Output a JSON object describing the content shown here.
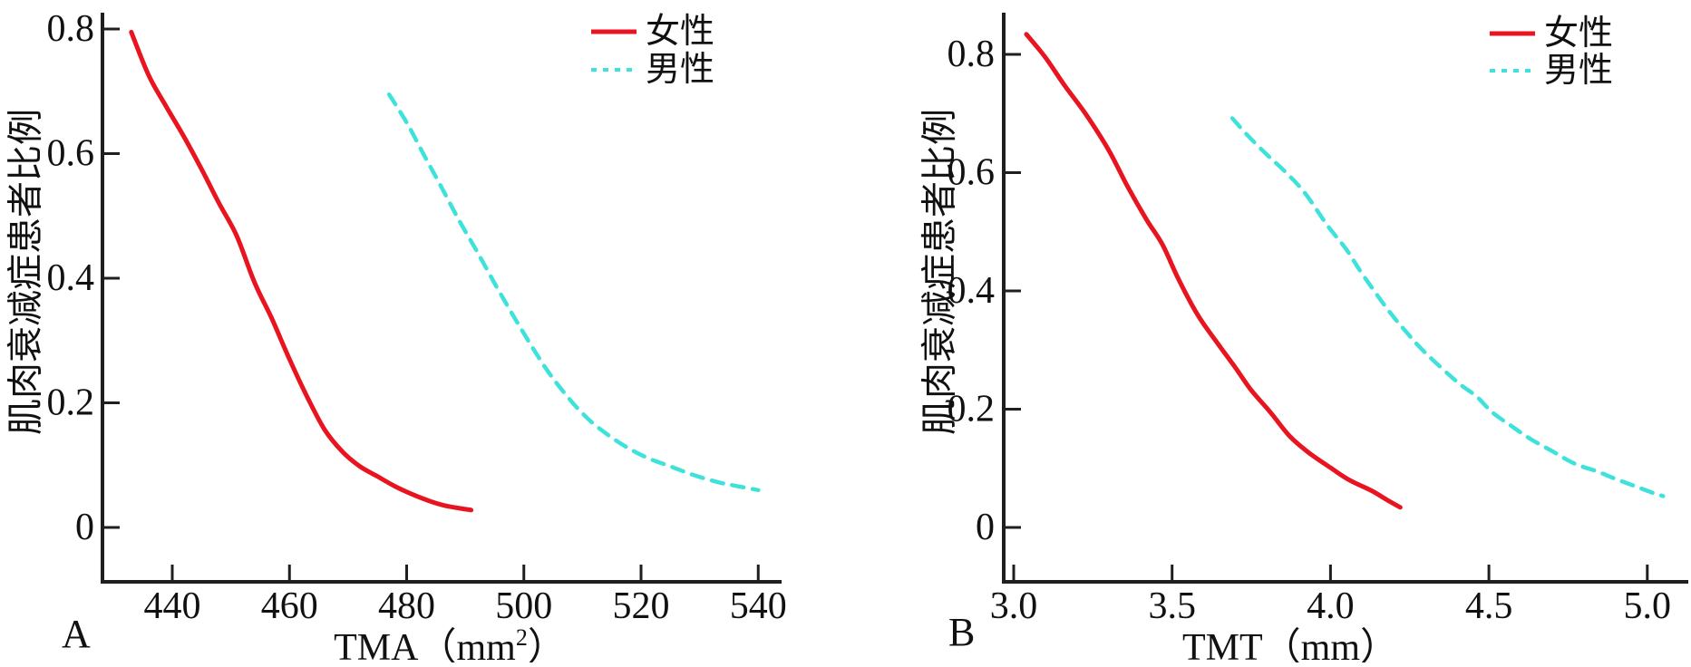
{
  "page": {
    "background": "#ffffff"
  },
  "legend": {
    "female_label": "女性",
    "male_label": "男性"
  },
  "colors": {
    "female": "#e8141f",
    "male": "#3fe2da",
    "axis": "#1f1f1f",
    "text": "#111111"
  },
  "chart_data": [
    {
      "id": "A",
      "type": "line",
      "panel_label": "A",
      "xlabel": {
        "prefix": "TMA（mm",
        "sup": "2",
        "suffix": "）"
      },
      "ylabel": "肌肉衰减症患者比例",
      "xlim": [
        428,
        544
      ],
      "ylim": [
        0,
        0.84
      ],
      "x_ticks": [
        440,
        460,
        480,
        500,
        520,
        540
      ],
      "x_tick_labels": [
        "440",
        "460",
        "480",
        "500",
        "520",
        "540"
      ],
      "y_ticks": [
        0,
        0.2,
        0.4,
        0.6,
        0.8
      ],
      "y_tick_labels": [
        "0",
        "0.2",
        "0.4",
        "0.6",
        "0.8"
      ],
      "grid": false,
      "legend_position": "top-right",
      "series": [
        {
          "name": "女性",
          "key": "female",
          "color": "#e8141f",
          "line_style": "solid",
          "points": [
            [
              433,
              0.795
            ],
            [
              436,
              0.725
            ],
            [
              439,
              0.675
            ],
            [
              442,
              0.627
            ],
            [
              445,
              0.575
            ],
            [
              448,
              0.52
            ],
            [
              451,
              0.468
            ],
            [
              454,
              0.394
            ],
            [
              457,
              0.335
            ],
            [
              460,
              0.27
            ],
            [
              463,
              0.21
            ],
            [
              466,
              0.157
            ],
            [
              469,
              0.122
            ],
            [
              472,
              0.098
            ],
            [
              475,
              0.082
            ],
            [
              478,
              0.066
            ],
            [
              481,
              0.053
            ],
            [
              484,
              0.042
            ],
            [
              487,
              0.034
            ],
            [
              491,
              0.028
            ]
          ]
        },
        {
          "name": "男性",
          "key": "male",
          "color": "#3fe2da",
          "line_style": "dashed",
          "points": [
            [
              477,
              0.695
            ],
            [
              480,
              0.65
            ],
            [
              483,
              0.597
            ],
            [
              486,
              0.545
            ],
            [
              489,
              0.492
            ],
            [
              492,
              0.443
            ],
            [
              495,
              0.392
            ],
            [
              498,
              0.343
            ],
            [
              501,
              0.296
            ],
            [
              504,
              0.252
            ],
            [
              507,
              0.215
            ],
            [
              510,
              0.183
            ],
            [
              513,
              0.158
            ],
            [
              517,
              0.132
            ],
            [
              521,
              0.112
            ],
            [
              525,
              0.098
            ],
            [
              529,
              0.084
            ],
            [
              533,
              0.073
            ],
            [
              536,
              0.067
            ],
            [
              540,
              0.06
            ]
          ]
        }
      ]
    },
    {
      "id": "B",
      "type": "line",
      "panel_label": "B",
      "xlabel": {
        "prefix": "TMT（mm",
        "sup": "",
        "suffix": "）"
      },
      "ylabel": "肌肉衰减症患者比例",
      "xlim": [
        2.97,
        5.13
      ],
      "ylim": [
        0,
        0.87
      ],
      "x_ticks": [
        3.0,
        3.5,
        4.0,
        4.5,
        5.0
      ],
      "x_tick_labels": [
        "3.0",
        "3.5",
        "4.0",
        "4.5",
        "5.0"
      ],
      "y_ticks": [
        0,
        0.2,
        0.4,
        0.6,
        0.8
      ],
      "y_tick_labels": [
        "0",
        "0.2",
        "0.4",
        "0.6",
        "0.8"
      ],
      "grid": false,
      "legend_position": "top-right",
      "series": [
        {
          "name": "女性",
          "key": "female",
          "color": "#e8141f",
          "line_style": "solid",
          "points": [
            [
              3.04,
              0.834
            ],
            [
              3.1,
              0.795
            ],
            [
              3.16,
              0.748
            ],
            [
              3.23,
              0.697
            ],
            [
              3.3,
              0.638
            ],
            [
              3.36,
              0.576
            ],
            [
              3.42,
              0.52
            ],
            [
              3.47,
              0.478
            ],
            [
              3.52,
              0.42
            ],
            [
              3.58,
              0.36
            ],
            [
              3.64,
              0.314
            ],
            [
              3.7,
              0.27
            ],
            [
              3.75,
              0.232
            ],
            [
              3.81,
              0.195
            ],
            [
              3.87,
              0.155
            ],
            [
              3.93,
              0.127
            ],
            [
              4.0,
              0.101
            ],
            [
              4.06,
              0.08
            ],
            [
              4.13,
              0.062
            ],
            [
              4.18,
              0.046
            ],
            [
              4.22,
              0.034
            ]
          ]
        },
        {
          "name": "男性",
          "key": "male",
          "color": "#3fe2da",
          "line_style": "dashed",
          "points": [
            [
              3.69,
              0.692
            ],
            [
              3.74,
              0.662
            ],
            [
              3.8,
              0.63
            ],
            [
              3.86,
              0.6
            ],
            [
              3.92,
              0.565
            ],
            [
              3.99,
              0.511
            ],
            [
              4.05,
              0.47
            ],
            [
              4.1,
              0.429
            ],
            [
              4.18,
              0.369
            ],
            [
              4.24,
              0.33
            ],
            [
              4.3,
              0.295
            ],
            [
              4.4,
              0.246
            ],
            [
              4.46,
              0.222
            ],
            [
              4.51,
              0.195
            ],
            [
              4.57,
              0.172
            ],
            [
              4.63,
              0.15
            ],
            [
              4.7,
              0.129
            ],
            [
              4.77,
              0.108
            ],
            [
              4.84,
              0.095
            ],
            [
              4.9,
              0.082
            ],
            [
              4.96,
              0.07
            ],
            [
              5.02,
              0.058
            ],
            [
              5.05,
              0.053
            ]
          ]
        }
      ]
    }
  ]
}
